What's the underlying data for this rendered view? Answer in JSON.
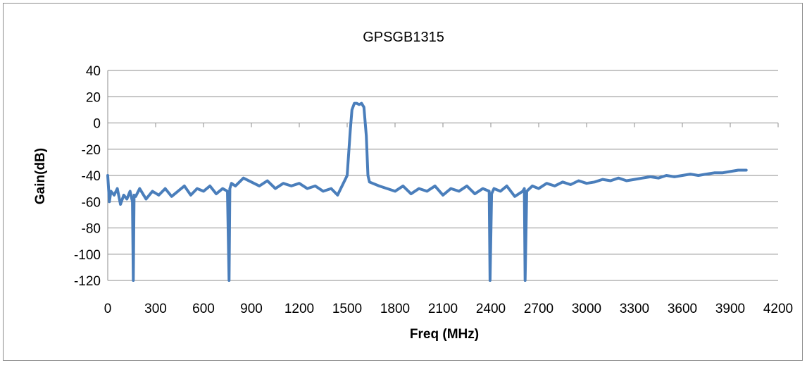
{
  "chart_data": {
    "type": "line",
    "title": "GPSGB1315",
    "xlabel": "Freq (MHz)",
    "ylabel": "Gain(dB)",
    "xlim": [
      0,
      4200
    ],
    "ylim": [
      -120,
      40
    ],
    "xticks": [
      0,
      300,
      600,
      900,
      1200,
      1500,
      1800,
      2100,
      2400,
      2700,
      3000,
      3300,
      3600,
      3900,
      4200
    ],
    "yticks": [
      40,
      20,
      0,
      -20,
      -40,
      -60,
      -80,
      -100,
      -120
    ],
    "grid": "horizontal",
    "legend": "none",
    "series_color": "#4a7ebb",
    "series": [
      {
        "x": [
          0,
          10,
          20,
          40,
          60,
          80,
          100,
          120,
          140,
          155,
          160,
          165,
          175,
          200,
          240,
          280,
          320,
          360,
          400,
          440,
          480,
          520,
          560,
          600,
          640,
          680,
          720,
          750,
          760,
          765,
          775,
          800,
          850,
          900,
          950,
          1000,
          1050,
          1100,
          1150,
          1200,
          1250,
          1300,
          1350,
          1400,
          1440,
          1460,
          1480,
          1500,
          1520,
          1530,
          1545,
          1560,
          1575,
          1590,
          1605,
          1620,
          1630,
          1640,
          1660,
          1700,
          1750,
          1800,
          1850,
          1900,
          1950,
          2000,
          2050,
          2100,
          2150,
          2200,
          2250,
          2300,
          2350,
          2390,
          2395,
          2405,
          2420,
          2460,
          2500,
          2550,
          2600,
          2610,
          2615,
          2625,
          2660,
          2700,
          2750,
          2800,
          2850,
          2900,
          2950,
          3000,
          3050,
          3100,
          3150,
          3200,
          3250,
          3300,
          3350,
          3400,
          3450,
          3500,
          3550,
          3600,
          3650,
          3700,
          3750,
          3800,
          3850,
          3900,
          3950,
          4000
        ],
        "y": [
          -40,
          -60,
          -52,
          -55,
          -50,
          -62,
          -55,
          -58,
          -52,
          -60,
          -120,
          -55,
          -56,
          -50,
          -58,
          -52,
          -55,
          -50,
          -56,
          -52,
          -48,
          -55,
          -50,
          -52,
          -48,
          -54,
          -50,
          -52,
          -120,
          -50,
          -46,
          -48,
          -42,
          -45,
          -48,
          -44,
          -50,
          -46,
          -48,
          -46,
          -50,
          -48,
          -52,
          -50,
          -55,
          -50,
          -45,
          -40,
          -5,
          10,
          15,
          15,
          14,
          15,
          12,
          -10,
          -40,
          -45,
          -46,
          -48,
          -50,
          -52,
          -48,
          -54,
          -50,
          -52,
          -48,
          -55,
          -50,
          -52,
          -48,
          -54,
          -50,
          -52,
          -120,
          -54,
          -50,
          -52,
          -48,
          -56,
          -52,
          -50,
          -120,
          -52,
          -48,
          -50,
          -46,
          -48,
          -45,
          -47,
          -44,
          -46,
          -45,
          -43,
          -44,
          -42,
          -44,
          -43,
          -42,
          -41,
          -42,
          -40,
          -41,
          -40,
          -39,
          -40,
          -39,
          -38,
          -38,
          -37,
          -36,
          -36
        ]
      }
    ]
  }
}
